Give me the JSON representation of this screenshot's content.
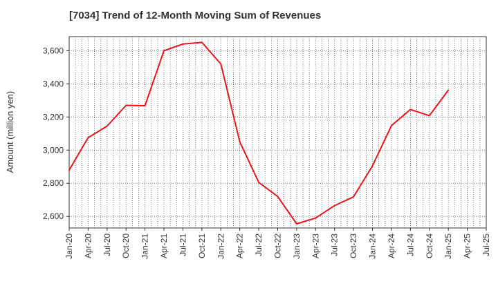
{
  "chart_data": {
    "type": "line",
    "title": "[7034]  Trend of 12-Month Moving Sum of Revenues",
    "ylabel": "Amount (million yen)",
    "xlabel": "",
    "x_ticks": [
      "Jan-20",
      "Apr-20",
      "Jul-20",
      "Oct-20",
      "Jan-21",
      "Apr-21",
      "Jul-21",
      "Oct-21",
      "Jan-22",
      "Apr-22",
      "Jul-22",
      "Oct-22",
      "Jan-23",
      "Apr-23",
      "Jul-23",
      "Oct-23",
      "Jan-24",
      "Apr-24",
      "Jul-24",
      "Oct-24",
      "Jan-25",
      "Apr-25",
      "Jul-25"
    ],
    "y_ticks": [
      2600,
      2800,
      3000,
      3200,
      3400,
      3600
    ],
    "ylim": [
      2530,
      3685
    ],
    "grid": true,
    "series": [
      {
        "color": "#e8141c",
        "x": [
          "Jan-20",
          "Apr-20",
          "Jul-20",
          "Oct-20",
          "Jan-21",
          "Apr-21",
          "Jul-21",
          "Oct-21",
          "Jan-22",
          "Apr-22",
          "Jul-22",
          "Oct-22",
          "Jan-23",
          "Apr-23",
          "Jul-23",
          "Oct-23",
          "Jan-24",
          "Apr-24",
          "Jul-24",
          "Oct-24",
          "Jan-25"
        ],
        "values": [
          2880,
          3075,
          3145,
          3270,
          3268,
          3600,
          3640,
          3650,
          3520,
          3050,
          2805,
          2720,
          2555,
          2590,
          2665,
          2718,
          2905,
          3148,
          3245,
          3208,
          3362
        ]
      }
    ]
  }
}
